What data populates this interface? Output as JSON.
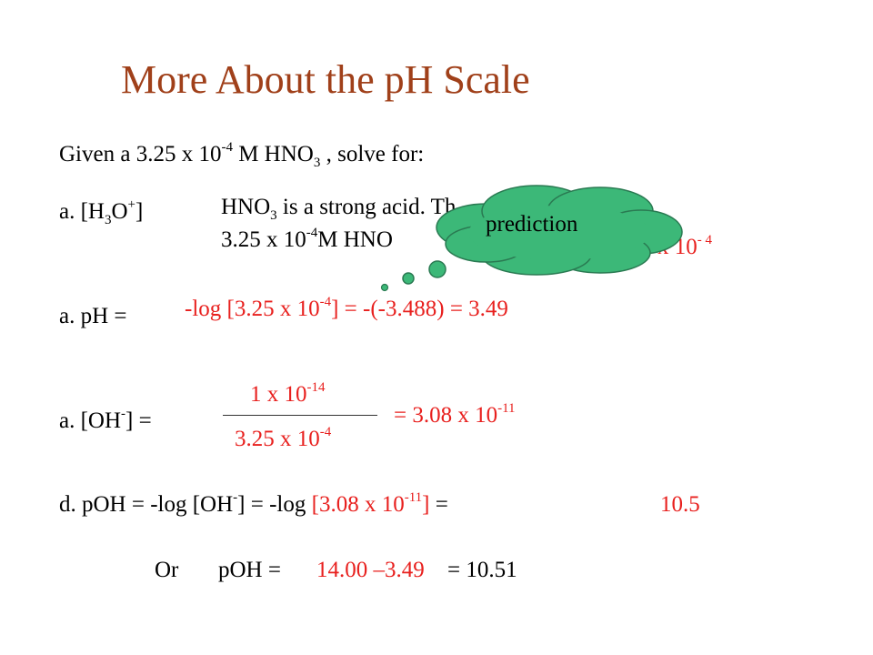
{
  "title": "More About the pH Scale",
  "given": {
    "prefix": "Given a  3.25 x 10",
    "exp": "-4",
    "middle": " M  HNO",
    "sub": "3",
    "suffix": " , solve for:"
  },
  "part_a1": {
    "label_prefix": "a.   [H",
    "label_sub": "3",
    "label_mid": "O",
    "label_sup": "+",
    "label_suffix": "]",
    "line1_pre": "HNO",
    "line1_sub": "3",
    "line1_post": " is a strong acid. Th",
    "line2_pre": "3.25 x 10",
    "line2_exp": "-4",
    "line2_post": "M HNO",
    "tail_pre": "x 10",
    "tail_exp": "- 4"
  },
  "cloud": {
    "label": "prediction",
    "color": "#3cb878"
  },
  "part_a2": {
    "label": "a.   pH  =",
    "calc_pre": "-log [3.25 x 10",
    "calc_exp": "-4",
    "calc_post": "]   =  -(-3.488)  =  3.49"
  },
  "part_a3": {
    "label_pre": "a.   [OH",
    "label_exp": "-",
    "label_post": "]   =",
    "num_pre": "1 x 10",
    "num_exp": "-14",
    "den_pre": "3.25 x 10",
    "den_exp": "-4",
    "result_pre": "=  3.08 x 10",
    "result_exp": "-11"
  },
  "part_d": {
    "black_pre": "d.  pOH   =  -log [OH",
    "black_exp": "-",
    "black_post": "]   =    -log ",
    "red_pre": "[3.08 x 10",
    "red_exp": "-11",
    "red_post": "]",
    "equals": "  =",
    "answer": "10.5"
  },
  "alt": {
    "or": "Or",
    "poh": "pOH  =",
    "expr": "14.00 –3.49",
    "equals": "  =  10.51"
  }
}
